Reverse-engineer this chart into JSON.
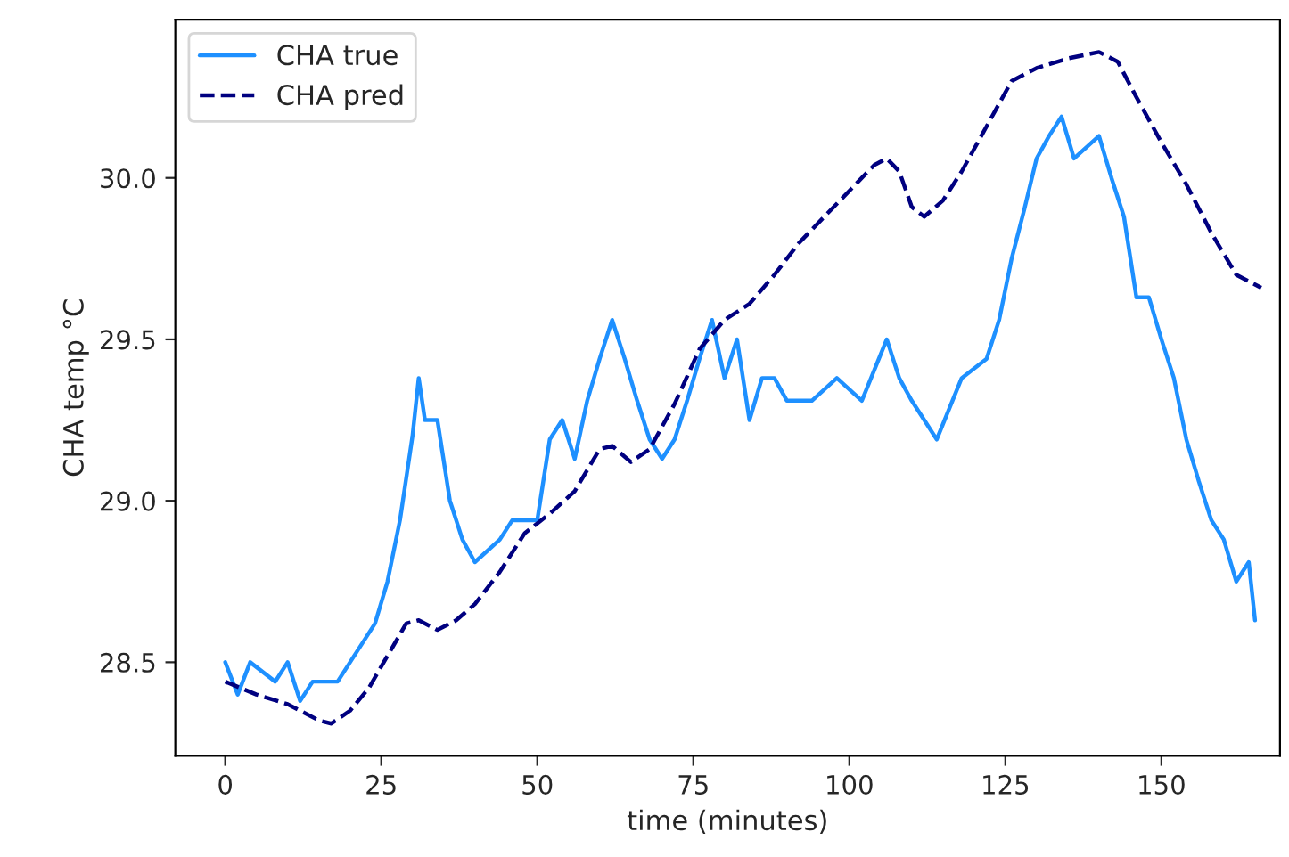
{
  "chart_data": {
    "type": "line",
    "xlabel": "time (minutes)",
    "ylabel": "CHA temp °C",
    "xlim": [
      -8,
      169
    ],
    "ylim": [
      28.21,
      30.49
    ],
    "xticks": [
      0,
      25,
      50,
      75,
      100,
      125,
      150
    ],
    "yticks": [
      {
        "value": 28.5,
        "label": "28.5"
      },
      {
        "value": 29.0,
        "label": "29.0"
      },
      {
        "value": 29.5,
        "label": "29.5"
      },
      {
        "value": 30.0,
        "label": "30.0"
      }
    ],
    "grid": false,
    "legend": "top left",
    "series": [
      {
        "name": "CHA true",
        "color": "#1e90ff",
        "line_style": "solid",
        "x": [
          0,
          2,
          4,
          8,
          10,
          12,
          14,
          18,
          20,
          22,
          24,
          26,
          28,
          30,
          31,
          32,
          34,
          36,
          38,
          40,
          44,
          46,
          50,
          52,
          54,
          56,
          58,
          60,
          62,
          64,
          66,
          68,
          70,
          72,
          74,
          76,
          78,
          80,
          82,
          84,
          86,
          88,
          90,
          94,
          98,
          102,
          106,
          108,
          110,
          114,
          118,
          122,
          124,
          126,
          128,
          130,
          132,
          134,
          136,
          140,
          142,
          144,
          146,
          148,
          150,
          152,
          154,
          156,
          158,
          160,
          162,
          164,
          165
        ],
        "values": [
          28.5,
          28.4,
          28.5,
          28.44,
          28.5,
          28.38,
          28.44,
          28.44,
          28.5,
          28.56,
          28.62,
          28.75,
          28.94,
          29.2,
          29.38,
          29.25,
          29.25,
          29.0,
          28.88,
          28.81,
          28.88,
          28.94,
          28.94,
          29.19,
          29.25,
          29.13,
          29.31,
          29.44,
          29.56,
          29.44,
          29.31,
          29.19,
          29.13,
          29.19,
          29.31,
          29.44,
          29.56,
          29.38,
          29.5,
          29.25,
          29.38,
          29.38,
          29.31,
          29.31,
          29.38,
          29.31,
          29.5,
          29.38,
          29.31,
          29.19,
          29.38,
          29.44,
          29.56,
          29.75,
          29.9,
          30.06,
          30.13,
          30.19,
          30.06,
          30.13,
          30.0,
          29.88,
          29.63,
          29.63,
          29.5,
          29.38,
          29.19,
          29.06,
          28.94,
          28.88,
          28.75,
          28.81,
          28.63
        ]
      },
      {
        "name": "CHA pred",
        "color": "#000080",
        "line_style": "dashed",
        "x": [
          0,
          5,
          10,
          15,
          17,
          20,
          23,
          26,
          29,
          31,
          34,
          37,
          40,
          44,
          48,
          52,
          56,
          60,
          62,
          65,
          68,
          72,
          76,
          80,
          84,
          88,
          92,
          96,
          100,
          104,
          106,
          108,
          110,
          112,
          115,
          118,
          122,
          126,
          130,
          135,
          140,
          143,
          146,
          150,
          154,
          158,
          162,
          166
        ],
        "values": [
          28.44,
          28.4,
          28.37,
          28.32,
          28.31,
          28.35,
          28.42,
          28.52,
          28.62,
          28.63,
          28.6,
          28.63,
          28.68,
          28.78,
          28.9,
          28.96,
          29.03,
          29.16,
          29.17,
          29.12,
          29.16,
          29.3,
          29.47,
          29.56,
          29.61,
          29.7,
          29.8,
          29.88,
          29.96,
          30.04,
          30.06,
          30.02,
          29.91,
          29.88,
          29.93,
          30.02,
          30.16,
          30.3,
          30.34,
          30.37,
          30.39,
          30.36,
          30.25,
          30.11,
          29.98,
          29.83,
          29.7,
          29.66
        ]
      }
    ]
  }
}
